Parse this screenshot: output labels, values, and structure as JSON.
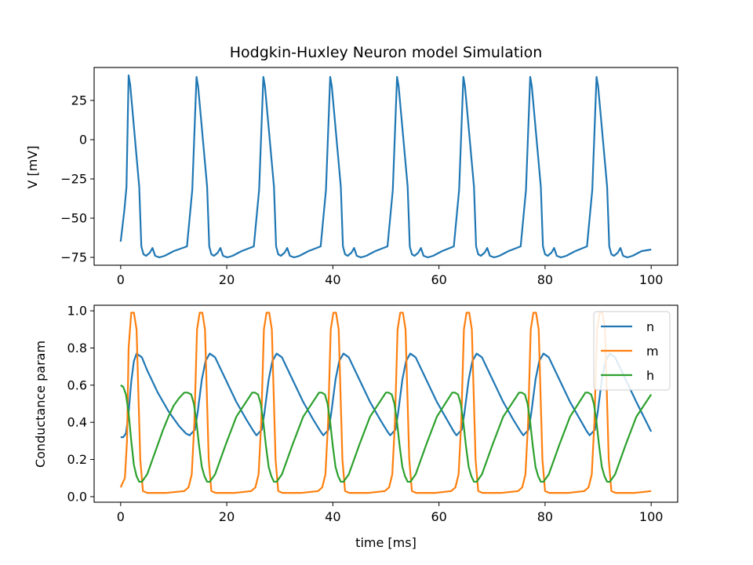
{
  "chart_data": [
    {
      "type": "line",
      "title": "Hodgkin-Huxley Neuron model Simulation",
      "xlabel": "",
      "ylabel": "V [mV]",
      "xlim": [
        -5,
        105
      ],
      "ylim": [
        -80,
        46
      ],
      "xticks": [
        0,
        20,
        40,
        60,
        80,
        100
      ],
      "yticks": [
        25,
        0,
        -25,
        -50,
        -75
      ],
      "ytick_labels": [
        "25",
        "0",
        "−25",
        "−50",
        "−75"
      ],
      "xtick_labels": [
        "0",
        "20",
        "40",
        "60",
        "80",
        "100"
      ],
      "grid": false,
      "spike_times": [
        1.5,
        14.3,
        26.9,
        39.5,
        52.1,
        64.6,
        77.2,
        89.7
      ],
      "series": [
        {
          "color": "#1f77b4",
          "x": [
            0,
            0.7,
            1.1,
            1.5,
            1.8,
            3.5,
            3.9,
            4.3,
            4.8,
            5.5,
            6.0,
            6.5,
            7.3,
            8.3,
            10.0,
            12.5,
            13.0,
            13.5,
            14.3,
            14.6,
            16.3,
            16.7,
            17.1,
            17.6,
            18.3,
            18.8,
            19.3,
            20.1,
            21.1,
            22.8,
            25.1,
            25.6,
            26.1,
            26.9,
            27.2,
            28.9,
            29.3,
            29.7,
            30.2,
            30.9,
            31.4,
            31.9,
            32.7,
            33.7,
            35.4,
            37.7,
            38.2,
            38.7,
            39.5,
            39.8,
            41.5,
            41.9,
            42.3,
            42.8,
            43.5,
            44.0,
            44.5,
            45.3,
            46.3,
            48.0,
            50.3,
            50.8,
            51.3,
            52.1,
            52.4,
            54.1,
            54.5,
            54.9,
            55.4,
            56.1,
            56.6,
            57.1,
            57.9,
            58.9,
            60.6,
            62.8,
            63.3,
            63.8,
            64.6,
            64.9,
            66.6,
            67.0,
            67.4,
            67.9,
            68.6,
            69.1,
            69.6,
            70.4,
            71.4,
            73.1,
            75.4,
            75.9,
            76.4,
            77.2,
            77.5,
            79.2,
            79.6,
            80.0,
            80.5,
            81.2,
            81.7,
            82.2,
            83.0,
            84.0,
            85.7,
            87.9,
            88.4,
            88.9,
            89.7,
            90.0,
            91.7,
            92.1,
            92.5,
            93.0,
            93.7,
            94.2,
            94.7,
            95.5,
            96.5,
            98.2,
            100
          ],
          "y": [
            -65,
            -45,
            -30,
            41,
            35,
            -30,
            -68,
            -73,
            -74,
            -72,
            -69,
            -74,
            -75,
            -74,
            -71,
            -68,
            -50,
            -32,
            40,
            34,
            -30,
            -68,
            -73,
            -74,
            -72,
            -69,
            -74,
            -75,
            -74,
            -71,
            -68,
            -50,
            -32,
            40,
            34,
            -30,
            -68,
            -73,
            -74,
            -72,
            -69,
            -74,
            -75,
            -74,
            -71,
            -68,
            -50,
            -32,
            40,
            34,
            -30,
            -68,
            -73,
            -74,
            -72,
            -69,
            -74,
            -75,
            -74,
            -71,
            -68,
            -50,
            -32,
            40,
            34,
            -30,
            -68,
            -73,
            -74,
            -72,
            -69,
            -74,
            -75,
            -74,
            -71,
            -68,
            -50,
            -32,
            40,
            34,
            -30,
            -68,
            -73,
            -74,
            -72,
            -69,
            -74,
            -75,
            -74,
            -71,
            -68,
            -50,
            -32,
            40,
            34,
            -30,
            -68,
            -73,
            -74,
            -72,
            -69,
            -74,
            -75,
            -74,
            -71,
            -68,
            -50,
            -32,
            40,
            34,
            -30,
            -68,
            -73,
            -74,
            -72,
            -69,
            -74,
            -75,
            -74,
            -71,
            -70
          ]
        }
      ]
    },
    {
      "type": "line",
      "title": "",
      "xlabel": "time [ms]",
      "ylabel": "Conductance param",
      "xlim": [
        -5,
        105
      ],
      "ylim": [
        -0.03,
        1.03
      ],
      "xticks": [
        0,
        20,
        40,
        60,
        80,
        100
      ],
      "yticks": [
        0.0,
        0.2,
        0.4,
        0.6,
        0.8,
        1.0
      ],
      "ytick_labels": [
        "0.0",
        "0.2",
        "0.4",
        "0.6",
        "0.8",
        "1.0"
      ],
      "xtick_labels": [
        "0",
        "20",
        "40",
        "60",
        "80",
        "100"
      ],
      "grid": false,
      "legend_position": "top-right",
      "series": [
        {
          "name": "n",
          "color": "#1f77b4",
          "x": [
            0,
            0.5,
            1.0,
            1.5,
            2.0,
            2.5,
            3.0,
            4.0,
            5.0,
            7.0,
            9.0,
            11.0,
            12.3,
            13.0,
            14.0,
            14.5,
            15.3,
            16.0,
            16.8,
            17.8,
            19.8,
            21.8,
            23.8,
            25.1,
            25.6,
            26.6,
            27.1,
            27.9,
            28.6,
            29.4,
            30.4,
            32.4,
            34.4,
            36.4,
            37.7,
            38.2,
            39.2,
            39.7,
            40.5,
            41.2,
            42.0,
            43.0,
            45.0,
            47.0,
            49.0,
            50.3,
            50.8,
            51.8,
            52.3,
            53.1,
            53.8,
            54.6,
            55.6,
            57.6,
            59.6,
            61.6,
            62.8,
            63.3,
            64.3,
            64.8,
            65.6,
            66.3,
            67.1,
            68.1,
            70.1,
            72.1,
            74.1,
            75.4,
            75.9,
            76.9,
            77.4,
            78.2,
            78.9,
            79.7,
            80.7,
            82.7,
            84.7,
            86.7,
            87.9,
            88.4,
            89.4,
            89.9,
            90.7,
            91.4,
            92.2,
            93.2,
            95.2,
            97.2,
            100
          ],
          "y": [
            0.32,
            0.32,
            0.34,
            0.45,
            0.62,
            0.73,
            0.77,
            0.75,
            0.68,
            0.56,
            0.46,
            0.38,
            0.34,
            0.33,
            0.36,
            0.45,
            0.63,
            0.73,
            0.77,
            0.75,
            0.63,
            0.51,
            0.41,
            0.35,
            0.33,
            0.36,
            0.45,
            0.63,
            0.73,
            0.77,
            0.75,
            0.63,
            0.51,
            0.41,
            0.35,
            0.33,
            0.36,
            0.45,
            0.63,
            0.73,
            0.77,
            0.75,
            0.63,
            0.51,
            0.41,
            0.35,
            0.33,
            0.36,
            0.45,
            0.63,
            0.73,
            0.77,
            0.75,
            0.63,
            0.51,
            0.41,
            0.35,
            0.33,
            0.36,
            0.45,
            0.63,
            0.73,
            0.77,
            0.75,
            0.63,
            0.51,
            0.41,
            0.35,
            0.33,
            0.36,
            0.45,
            0.63,
            0.73,
            0.77,
            0.75,
            0.63,
            0.51,
            0.41,
            0.35,
            0.33,
            0.36,
            0.45,
            0.63,
            0.73,
            0.77,
            0.75,
            0.63,
            0.51,
            0.35
          ]
        },
        {
          "name": "m",
          "color": "#ff7f0e",
          "x": [
            0,
            0.8,
            1.2,
            1.5,
            2.0,
            2.5,
            3.0,
            3.3,
            3.7,
            4.2,
            5.0,
            6.5,
            8.5,
            12.0,
            12.8,
            13.4,
            13.9,
            14.4,
            14.9,
            15.4,
            15.9,
            16.2,
            16.6,
            17.1,
            17.9,
            19.4,
            21.4,
            24.6,
            25.4,
            26.0,
            26.5,
            27.0,
            27.5,
            28.0,
            28.5,
            28.8,
            29.2,
            29.7,
            30.5,
            32.0,
            34.0,
            37.2,
            38.0,
            38.6,
            39.1,
            39.6,
            40.1,
            40.6,
            41.1,
            41.4,
            41.8,
            42.3,
            43.1,
            44.6,
            46.6,
            49.8,
            50.6,
            51.2,
            51.7,
            52.2,
            52.7,
            53.2,
            53.7,
            54.0,
            54.4,
            54.9,
            55.7,
            57.2,
            59.2,
            62.3,
            63.1,
            63.7,
            64.2,
            64.7,
            65.2,
            65.7,
            66.2,
            66.5,
            66.9,
            67.4,
            68.2,
            69.7,
            71.7,
            74.9,
            75.7,
            76.3,
            76.8,
            77.3,
            77.8,
            78.3,
            78.8,
            79.1,
            79.5,
            80.0,
            80.8,
            82.3,
            84.3,
            87.4,
            88.2,
            88.8,
            89.3,
            89.8,
            90.3,
            90.8,
            91.3,
            91.6,
            92.0,
            92.5,
            93.3,
            94.8,
            96.8,
            100
          ],
          "y": [
            0.05,
            0.1,
            0.3,
            0.8,
            0.99,
            0.99,
            0.9,
            0.6,
            0.2,
            0.03,
            0.02,
            0.02,
            0.02,
            0.03,
            0.05,
            0.12,
            0.4,
            0.9,
            0.99,
            0.99,
            0.9,
            0.6,
            0.2,
            0.03,
            0.02,
            0.02,
            0.02,
            0.03,
            0.05,
            0.12,
            0.4,
            0.9,
            0.99,
            0.99,
            0.9,
            0.6,
            0.2,
            0.03,
            0.02,
            0.02,
            0.02,
            0.03,
            0.05,
            0.12,
            0.4,
            0.9,
            0.99,
            0.99,
            0.9,
            0.6,
            0.2,
            0.03,
            0.02,
            0.02,
            0.02,
            0.03,
            0.05,
            0.12,
            0.4,
            0.9,
            0.99,
            0.99,
            0.9,
            0.6,
            0.2,
            0.03,
            0.02,
            0.02,
            0.02,
            0.03,
            0.05,
            0.12,
            0.4,
            0.9,
            0.99,
            0.99,
            0.9,
            0.6,
            0.2,
            0.03,
            0.02,
            0.02,
            0.02,
            0.03,
            0.05,
            0.12,
            0.4,
            0.9,
            0.99,
            0.99,
            0.9,
            0.6,
            0.2,
            0.03,
            0.02,
            0.02,
            0.02,
            0.03,
            0.05,
            0.12,
            0.4,
            0.9,
            0.99,
            0.99,
            0.9,
            0.6,
            0.2,
            0.03,
            0.02,
            0.02,
            0.02,
            0.03
          ]
        },
        {
          "name": "h",
          "color": "#2ca02c",
          "x": [
            0,
            0.5,
            1.0,
            1.5,
            2.0,
            2.5,
            3.0,
            3.5,
            4.0,
            5.0,
            6.0,
            7.0,
            8.0,
            9.0,
            10.0,
            11.0,
            12.0,
            12.6,
            13.3,
            13.8,
            14.3,
            14.8,
            15.3,
            15.8,
            16.3,
            16.8,
            17.8,
            19.8,
            21.8,
            24.8,
            25.3,
            25.9,
            26.4,
            26.9,
            27.4,
            27.9,
            28.4,
            28.9,
            29.4,
            30.4,
            32.4,
            34.4,
            37.4,
            37.9,
            38.5,
            39.0,
            39.5,
            40.0,
            40.5,
            41.0,
            41.5,
            42.0,
            43.0,
            45.0,
            47.0,
            50.0,
            50.5,
            51.1,
            51.6,
            52.1,
            52.6,
            53.1,
            53.6,
            54.1,
            54.6,
            55.6,
            57.6,
            59.6,
            62.5,
            63.0,
            63.6,
            64.1,
            64.6,
            65.1,
            65.6,
            66.1,
            66.6,
            67.1,
            68.1,
            70.1,
            72.1,
            75.1,
            75.6,
            76.2,
            76.7,
            77.2,
            77.7,
            78.2,
            78.7,
            79.2,
            79.7,
            80.7,
            82.7,
            84.7,
            87.6,
            88.1,
            88.7,
            89.2,
            89.7,
            90.2,
            90.7,
            91.2,
            91.7,
            92.2,
            93.2,
            95.2,
            97.2,
            100
          ],
          "y": [
            0.6,
            0.59,
            0.55,
            0.45,
            0.3,
            0.17,
            0.11,
            0.08,
            0.08,
            0.12,
            0.2,
            0.28,
            0.36,
            0.43,
            0.49,
            0.53,
            0.56,
            0.56,
            0.55,
            0.5,
            0.4,
            0.27,
            0.16,
            0.11,
            0.08,
            0.08,
            0.12,
            0.28,
            0.43,
            0.56,
            0.56,
            0.55,
            0.5,
            0.4,
            0.27,
            0.16,
            0.11,
            0.08,
            0.08,
            0.12,
            0.28,
            0.43,
            0.56,
            0.56,
            0.55,
            0.5,
            0.4,
            0.27,
            0.16,
            0.11,
            0.08,
            0.08,
            0.12,
            0.28,
            0.43,
            0.56,
            0.56,
            0.55,
            0.5,
            0.4,
            0.27,
            0.16,
            0.11,
            0.08,
            0.08,
            0.12,
            0.28,
            0.43,
            0.56,
            0.56,
            0.55,
            0.5,
            0.4,
            0.27,
            0.16,
            0.11,
            0.08,
            0.08,
            0.12,
            0.28,
            0.43,
            0.56,
            0.56,
            0.55,
            0.5,
            0.4,
            0.27,
            0.16,
            0.11,
            0.08,
            0.08,
            0.12,
            0.28,
            0.43,
            0.56,
            0.56,
            0.55,
            0.5,
            0.4,
            0.27,
            0.16,
            0.11,
            0.08,
            0.08,
            0.12,
            0.28,
            0.43,
            0.55
          ]
        }
      ]
    }
  ]
}
